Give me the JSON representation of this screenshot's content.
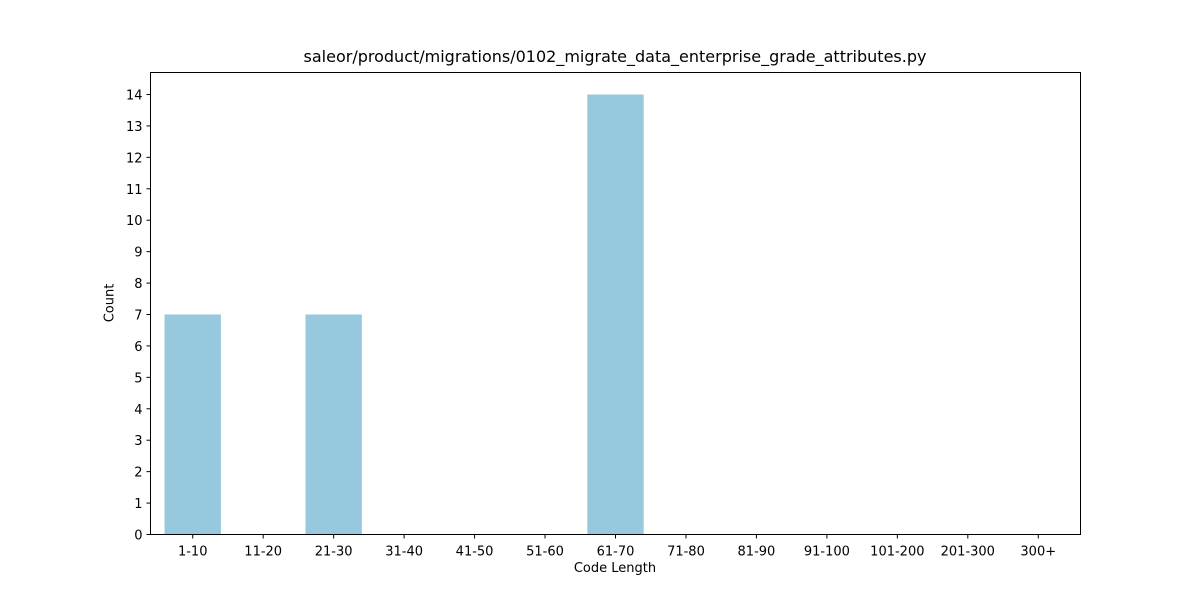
{
  "chart_data": {
    "type": "bar",
    "title": "saleor/product/migrations/0102_migrate_data_enterprise_grade_attributes.py",
    "xlabel": "Code Length",
    "ylabel": "Count",
    "categories": [
      "1-10",
      "11-20",
      "21-30",
      "31-40",
      "41-50",
      "51-60",
      "61-70",
      "71-80",
      "81-90",
      "91-100",
      "101-200",
      "201-300",
      "300+"
    ],
    "values": [
      7,
      0,
      7,
      0,
      0,
      0,
      14,
      0,
      0,
      0,
      0,
      0,
      0
    ],
    "ylim": [
      0,
      14.7
    ],
    "yticks": [
      0,
      1,
      2,
      3,
      4,
      5,
      6,
      7,
      8,
      9,
      10,
      11,
      12,
      13,
      14
    ],
    "bar_color": "#96c9dd",
    "grid": false,
    "legend": "none"
  }
}
